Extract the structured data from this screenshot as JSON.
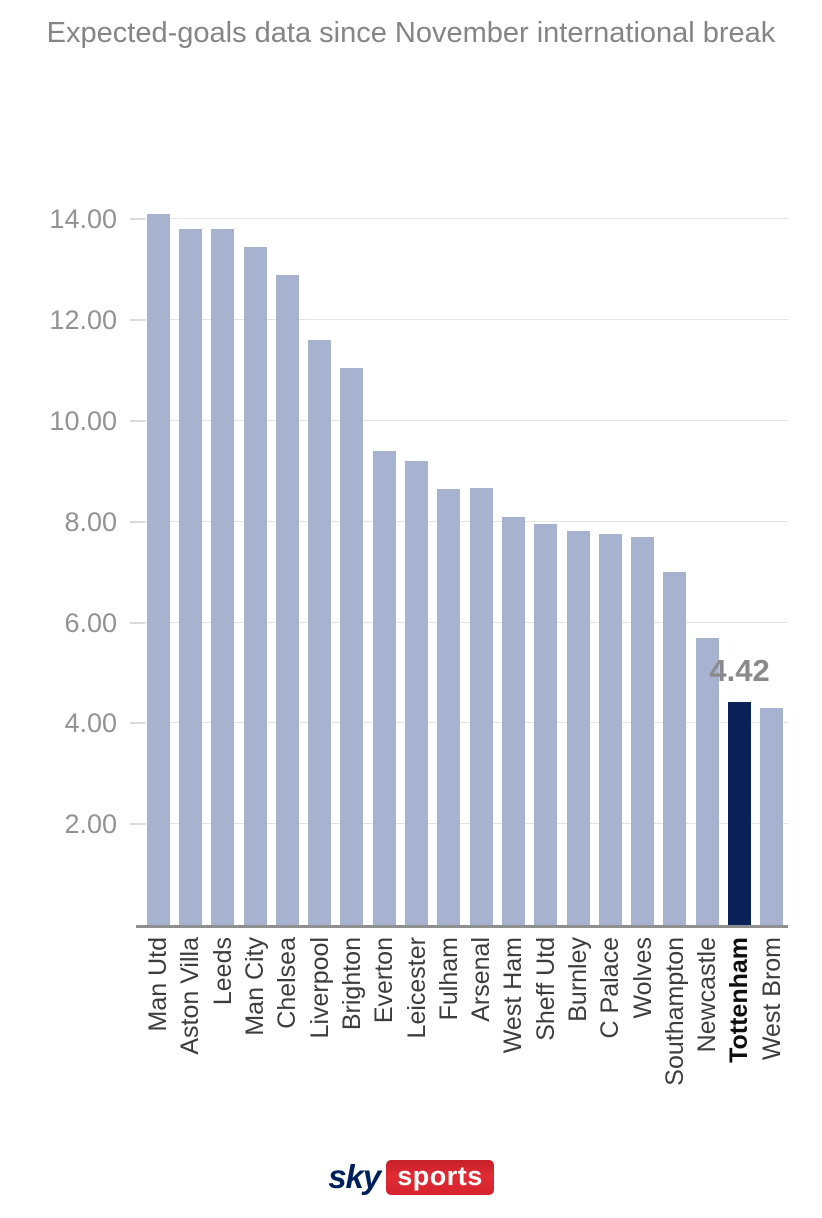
{
  "title": "Expected-goals data since November international break",
  "chart_data": {
    "type": "bar",
    "title": "Expected-goals data since November international break",
    "categories": [
      "Man Utd",
      "Aston Villa",
      "Leeds",
      "Man City",
      "Chelsea",
      "Liverpool",
      "Brighton",
      "Everton",
      "Leicester",
      "Fulham",
      "Arsenal",
      "West Ham",
      "Sheff Utd",
      "Burnley",
      "C Palace",
      "Wolves",
      "Southampton",
      "Newcastle",
      "Tottenham",
      "West Brom"
    ],
    "values": [
      14.1,
      13.8,
      13.8,
      13.45,
      12.9,
      11.6,
      11.05,
      9.4,
      9.2,
      8.65,
      8.68,
      8.1,
      7.95,
      7.82,
      7.76,
      7.7,
      7.0,
      5.7,
      4.42,
      4.3
    ],
    "highlight_index": 18,
    "highlight_team": "Tottenham",
    "highlight_label": "4.42",
    "y_ticks": [
      2,
      4,
      6,
      8,
      10,
      12,
      14
    ],
    "y_tick_labels": [
      "2.00",
      "4.00",
      "6.00",
      "8.00",
      "10.00",
      "12.00",
      "14.00"
    ],
    "ylim": [
      0,
      14.5
    ],
    "grid": true,
    "legend": "none",
    "xlabel": "",
    "ylabel": "",
    "colors": {
      "bar": "#a6b2d0",
      "highlight_bar": "#0b2159",
      "grid": "#e4e4e4",
      "axis": "#8f8f8f",
      "title_text": "#858585",
      "y_label_text": "#939393",
      "x_label_text": "#3d3d3d",
      "highlight_text": "#8a8a8a"
    }
  },
  "logo": {
    "sky": "sky",
    "sports": "sports",
    "sky_color": "#00205b",
    "sports_bg": "#d6232e"
  }
}
